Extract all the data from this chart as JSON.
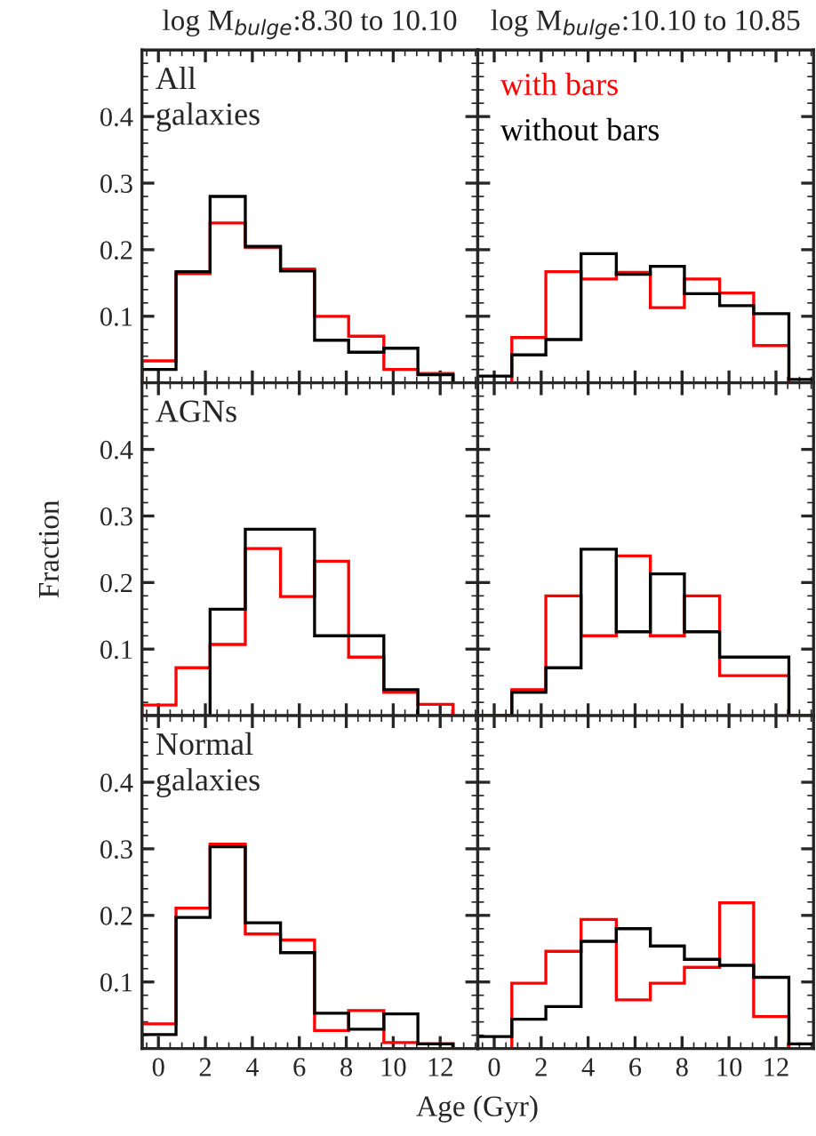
{
  "chart_data": [
    {
      "type": "histogram",
      "title": "log M$_{bulge}$:8.30 to 10.10",
      "annotations": [
        "All\ngalaxies"
      ],
      "bins": [
        -0.7,
        0.75,
        2.2,
        3.7,
        5.2,
        6.65,
        8.1,
        9.6,
        11.05,
        12.55
      ],
      "xlim": [
        -0.7,
        13.6
      ],
      "ylim": [
        0,
        0.5
      ],
      "xticks": [
        0,
        2,
        4,
        6,
        8,
        10,
        12
      ],
      "yticks": [
        0.1,
        0.2,
        0.3,
        0.4
      ],
      "tick_labels": "y",
      "series": [
        {
          "color": "#ff0000",
          "values": [
            0.033,
            0.164,
            0.24,
            0.203,
            0.171,
            0.1,
            0.07,
            0.02,
            0.014
          ]
        },
        {
          "color": "#000000",
          "values": [
            0.02,
            0.167,
            0.28,
            0.205,
            0.168,
            0.064,
            0.046,
            0.052,
            0.012
          ]
        }
      ]
    },
    {
      "type": "histogram",
      "title": "log M$_{bulge}$:10.10 to 10.85",
      "legend": "top left",
      "bins": [
        -0.7,
        0.75,
        2.2,
        3.7,
        5.2,
        6.65,
        8.1,
        9.6,
        11.05,
        12.55,
        13.6
      ],
      "xlim": [
        -0.7,
        13.6
      ],
      "ylim": [
        0,
        0.5
      ],
      "xticks": [
        0,
        2,
        4,
        6,
        8,
        10,
        12
      ],
      "yticks": [
        0.1,
        0.2,
        0.3,
        0.4
      ],
      "tick_labels": false,
      "series": [
        {
          "name": "with bars",
          "color": "#ff0000",
          "values": [
            0,
            0.068,
            0.167,
            0.156,
            0.166,
            0.113,
            0.156,
            0.135,
            0.056,
            0
          ]
        },
        {
          "name": "without bars",
          "color": "#000000",
          "values": [
            0.01,
            0.042,
            0.065,
            0.194,
            0.163,
            0.175,
            0.134,
            0.116,
            0.104,
            0.005
          ]
        }
      ]
    },
    {
      "type": "histogram",
      "ylabel": "Fraction",
      "annotations": [
        "AGNs"
      ],
      "bins": [
        -0.7,
        0.75,
        2.2,
        3.7,
        5.2,
        6.65,
        8.1,
        9.6,
        11.05,
        12.55
      ],
      "xlim": [
        -0.7,
        13.6
      ],
      "ylim": [
        0,
        0.5
      ],
      "xticks": [
        0,
        2,
        4,
        6,
        8,
        10,
        12
      ],
      "yticks": [
        0.1,
        0.2,
        0.3,
        0.4
      ],
      "tick_labels": "y",
      "series": [
        {
          "color": "#ff0000",
          "values": [
            0.016,
            0.072,
            0.107,
            0.251,
            0.179,
            0.232,
            0.088,
            0.035,
            0.017
          ]
        },
        {
          "color": "#000000",
          "values": [
            0,
            0,
            0.16,
            0.28,
            0.28,
            0.12,
            0.12,
            0.039,
            0
          ]
        }
      ]
    },
    {
      "type": "histogram",
      "bins": [
        -0.7,
        0.75,
        2.2,
        3.7,
        5.2,
        6.65,
        8.1,
        9.6,
        11.05,
        12.55,
        13.6
      ],
      "xlim": [
        -0.7,
        13.6
      ],
      "ylim": [
        0,
        0.5
      ],
      "xticks": [
        0,
        2,
        4,
        6,
        8,
        10,
        12
      ],
      "yticks": [
        0.1,
        0.2,
        0.3,
        0.4
      ],
      "tick_labels": false,
      "series": [
        {
          "color": "#ff0000",
          "values": [
            0,
            0.039,
            0.18,
            0.12,
            0.24,
            0.12,
            0.18,
            0.06,
            0.06,
            0
          ]
        },
        {
          "color": "#000000",
          "values": [
            0,
            0.035,
            0.072,
            0.25,
            0.126,
            0.213,
            0.126,
            0.088,
            0.088,
            0
          ]
        }
      ]
    },
    {
      "type": "histogram",
      "xlabel": "Age (Gyr)",
      "annotations": [
        "Normal\ngalaxies"
      ],
      "bins": [
        -0.7,
        0.75,
        2.2,
        3.7,
        5.2,
        6.65,
        8.1,
        9.6,
        11.05,
        12.55
      ],
      "xlim": [
        -0.7,
        13.6
      ],
      "ylim": [
        0,
        0.5
      ],
      "xticks": [
        0,
        2,
        4,
        6,
        8,
        10,
        12
      ],
      "yticks": [
        0.1,
        0.2,
        0.3,
        0.4
      ],
      "series": [
        {
          "color": "#ff0000",
          "values": [
            0.037,
            0.211,
            0.307,
            0.172,
            0.163,
            0.027,
            0.057,
            0.009,
            0.007
          ]
        },
        {
          "color": "#000000",
          "values": [
            0.021,
            0.197,
            0.303,
            0.189,
            0.144,
            0.053,
            0.029,
            0.052,
            0.007
          ]
        }
      ]
    },
    {
      "type": "histogram",
      "bins": [
        -0.7,
        0.75,
        2.2,
        3.7,
        5.2,
        6.65,
        8.1,
        9.6,
        11.05,
        12.55,
        13.6
      ],
      "xlim": [
        -0.7,
        13.6
      ],
      "ylim": [
        0,
        0.5
      ],
      "xticks": [
        0,
        2,
        4,
        6,
        8,
        10,
        12
      ],
      "yticks": [
        0.1,
        0.2,
        0.3,
        0.4
      ],
      "tick_labels": "x",
      "series": [
        {
          "color": "#ff0000",
          "values": [
            0,
            0.098,
            0.146,
            0.194,
            0.073,
            0.098,
            0.122,
            0.219,
            0.048,
            0
          ]
        },
        {
          "color": "#000000",
          "values": [
            0.018,
            0.044,
            0.063,
            0.161,
            0.18,
            0.154,
            0.134,
            0.125,
            0.107,
            0.007
          ]
        }
      ]
    }
  ]
}
